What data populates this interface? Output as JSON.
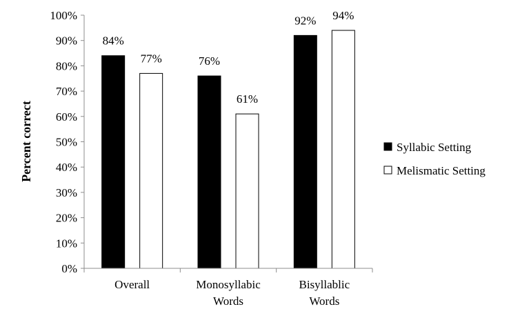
{
  "chart_data": {
    "type": "bar",
    "categories": [
      [
        "Overall"
      ],
      [
        "Monosyllabic",
        "Words"
      ],
      [
        "Bisyllablic",
        "Words"
      ]
    ],
    "series": [
      {
        "name": "Syllabic Setting",
        "values": [
          84,
          76,
          92
        ],
        "labels": [
          "84%",
          "76%",
          "92%"
        ],
        "color": "#000000"
      },
      {
        "name": "Melismatic Setting",
        "values": [
          77,
          61,
          94
        ],
        "labels": [
          "77%",
          "61%",
          "94%"
        ],
        "color": "#ffffff"
      }
    ],
    "ylabel": "Percent correct",
    "xlabel": "",
    "ylim": [
      0,
      100
    ],
    "yticks": [
      "0%",
      "10%",
      "20%",
      "30%",
      "40%",
      "50%",
      "60%",
      "70%",
      "80%",
      "90%",
      "100%"
    ],
    "grid": false,
    "legend_position": "right"
  }
}
